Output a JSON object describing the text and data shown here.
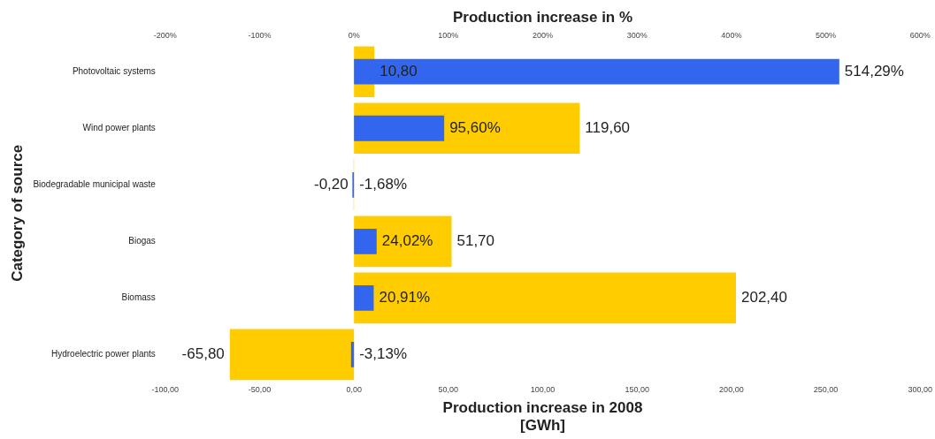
{
  "chart_data": {
    "type": "bar",
    "orientation": "horizontal",
    "xlabel": "Production increase in 2008\n[GWh]",
    "x2label": "Production increase in %",
    "ylabel": "Category of source",
    "categories": [
      "Photovoltaic systems",
      "Wind power plants",
      "Biodegradable municipal waste",
      "Biogas",
      "Biomass",
      "Hydroelectric power plants"
    ],
    "series": [
      {
        "color": "#ffcc00",
        "values": [
          10.8,
          119.6,
          -0.2,
          51.7,
          202.4,
          -65.8
        ],
        "value_labels": [
          "10,80",
          "119,60",
          "-0,20",
          "51,70",
          "202,40",
          "-65,80"
        ]
      },
      {
        "color": "#3366ee",
        "axis": "x2",
        "values": [
          514.29,
          95.6,
          -1.68,
          24.02,
          20.91,
          -3.13
        ],
        "value_labels": [
          "514,29%",
          "95,60%",
          "-1,68%",
          "24,02%",
          "20,91%",
          "-3,13%"
        ]
      }
    ],
    "xlim": [
      -100,
      300
    ],
    "xticks": [
      {
        "value": -100,
        "label": "-100,00"
      },
      {
        "value": -50,
        "label": "-50,00"
      },
      {
        "value": 0,
        "label": "0,00"
      },
      {
        "value": 50,
        "label": "50,00"
      },
      {
        "value": 100,
        "label": "100,00"
      },
      {
        "value": 150,
        "label": "150,00"
      },
      {
        "value": 200,
        "label": "200,00"
      },
      {
        "value": 250,
        "label": "250,00"
      },
      {
        "value": 300,
        "label": "300,00"
      }
    ],
    "x2lim": [
      -200,
      600
    ],
    "x2ticks": [
      {
        "value": -200,
        "label": "-200%"
      },
      {
        "value": -100,
        "label": "-100%"
      },
      {
        "value": 0,
        "label": "0%"
      },
      {
        "value": 100,
        "label": "100%"
      },
      {
        "value": 200,
        "label": "200%"
      },
      {
        "value": 300,
        "label": "300%"
      },
      {
        "value": 400,
        "label": "400%"
      },
      {
        "value": 500,
        "label": "500%"
      },
      {
        "value": 600,
        "label": "600%"
      }
    ],
    "grid": false,
    "legend": false
  }
}
